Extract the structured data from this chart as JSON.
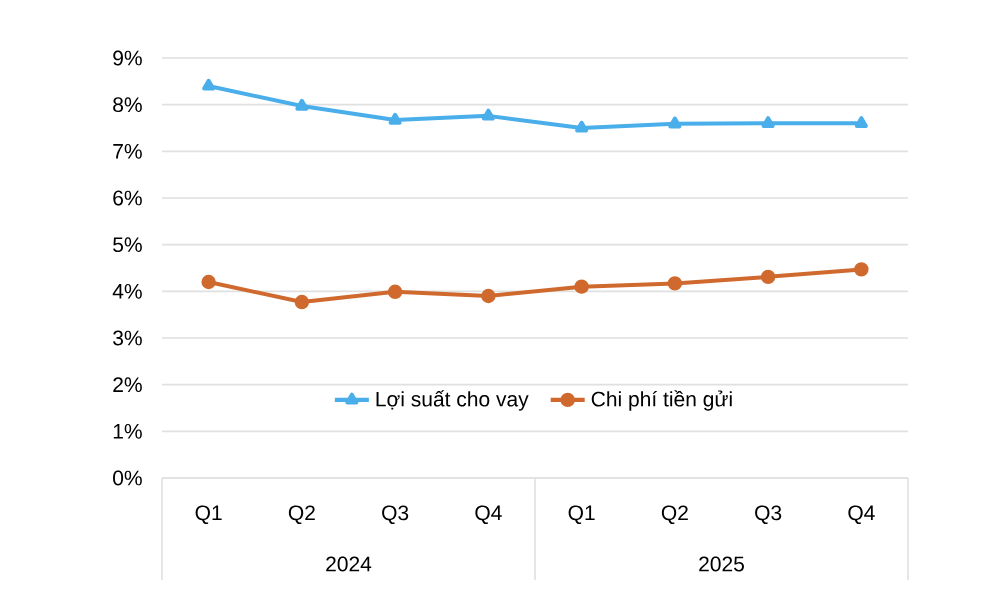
{
  "chart_data": {
    "type": "line",
    "categories": [
      "Q1",
      "Q2",
      "Q3",
      "Q4",
      "Q1",
      "Q2",
      "Q3",
      "Q4"
    ],
    "annotations": [
      "2024",
      "2025"
    ],
    "series": [
      {
        "name": "Lợi suất cho vay",
        "color": "#4aaeea",
        "marker": "triangle",
        "values": [
          8.4,
          7.97,
          7.67,
          7.76,
          7.5,
          7.59,
          7.6,
          7.6
        ]
      },
      {
        "name": "Chi phí tiền gửi",
        "color": "#d0692e",
        "marker": "circle",
        "values": [
          4.2,
          3.77,
          3.99,
          3.9,
          4.1,
          4.17,
          4.31,
          4.47
        ]
      }
    ],
    "ylim": [
      0,
      9
    ],
    "yticks": [
      {
        "value": 0,
        "label": "0%"
      },
      {
        "value": 1,
        "label": "1%"
      },
      {
        "value": 2,
        "label": "2%"
      },
      {
        "value": 3,
        "label": "3%"
      },
      {
        "value": 4,
        "label": "4%"
      },
      {
        "value": 5,
        "label": "5%"
      },
      {
        "value": 6,
        "label": "6%"
      },
      {
        "value": 7,
        "label": "7%"
      },
      {
        "value": 8,
        "label": "8%"
      },
      {
        "value": 9,
        "label": "9%"
      }
    ],
    "grid": "y",
    "legend": "bottom"
  }
}
